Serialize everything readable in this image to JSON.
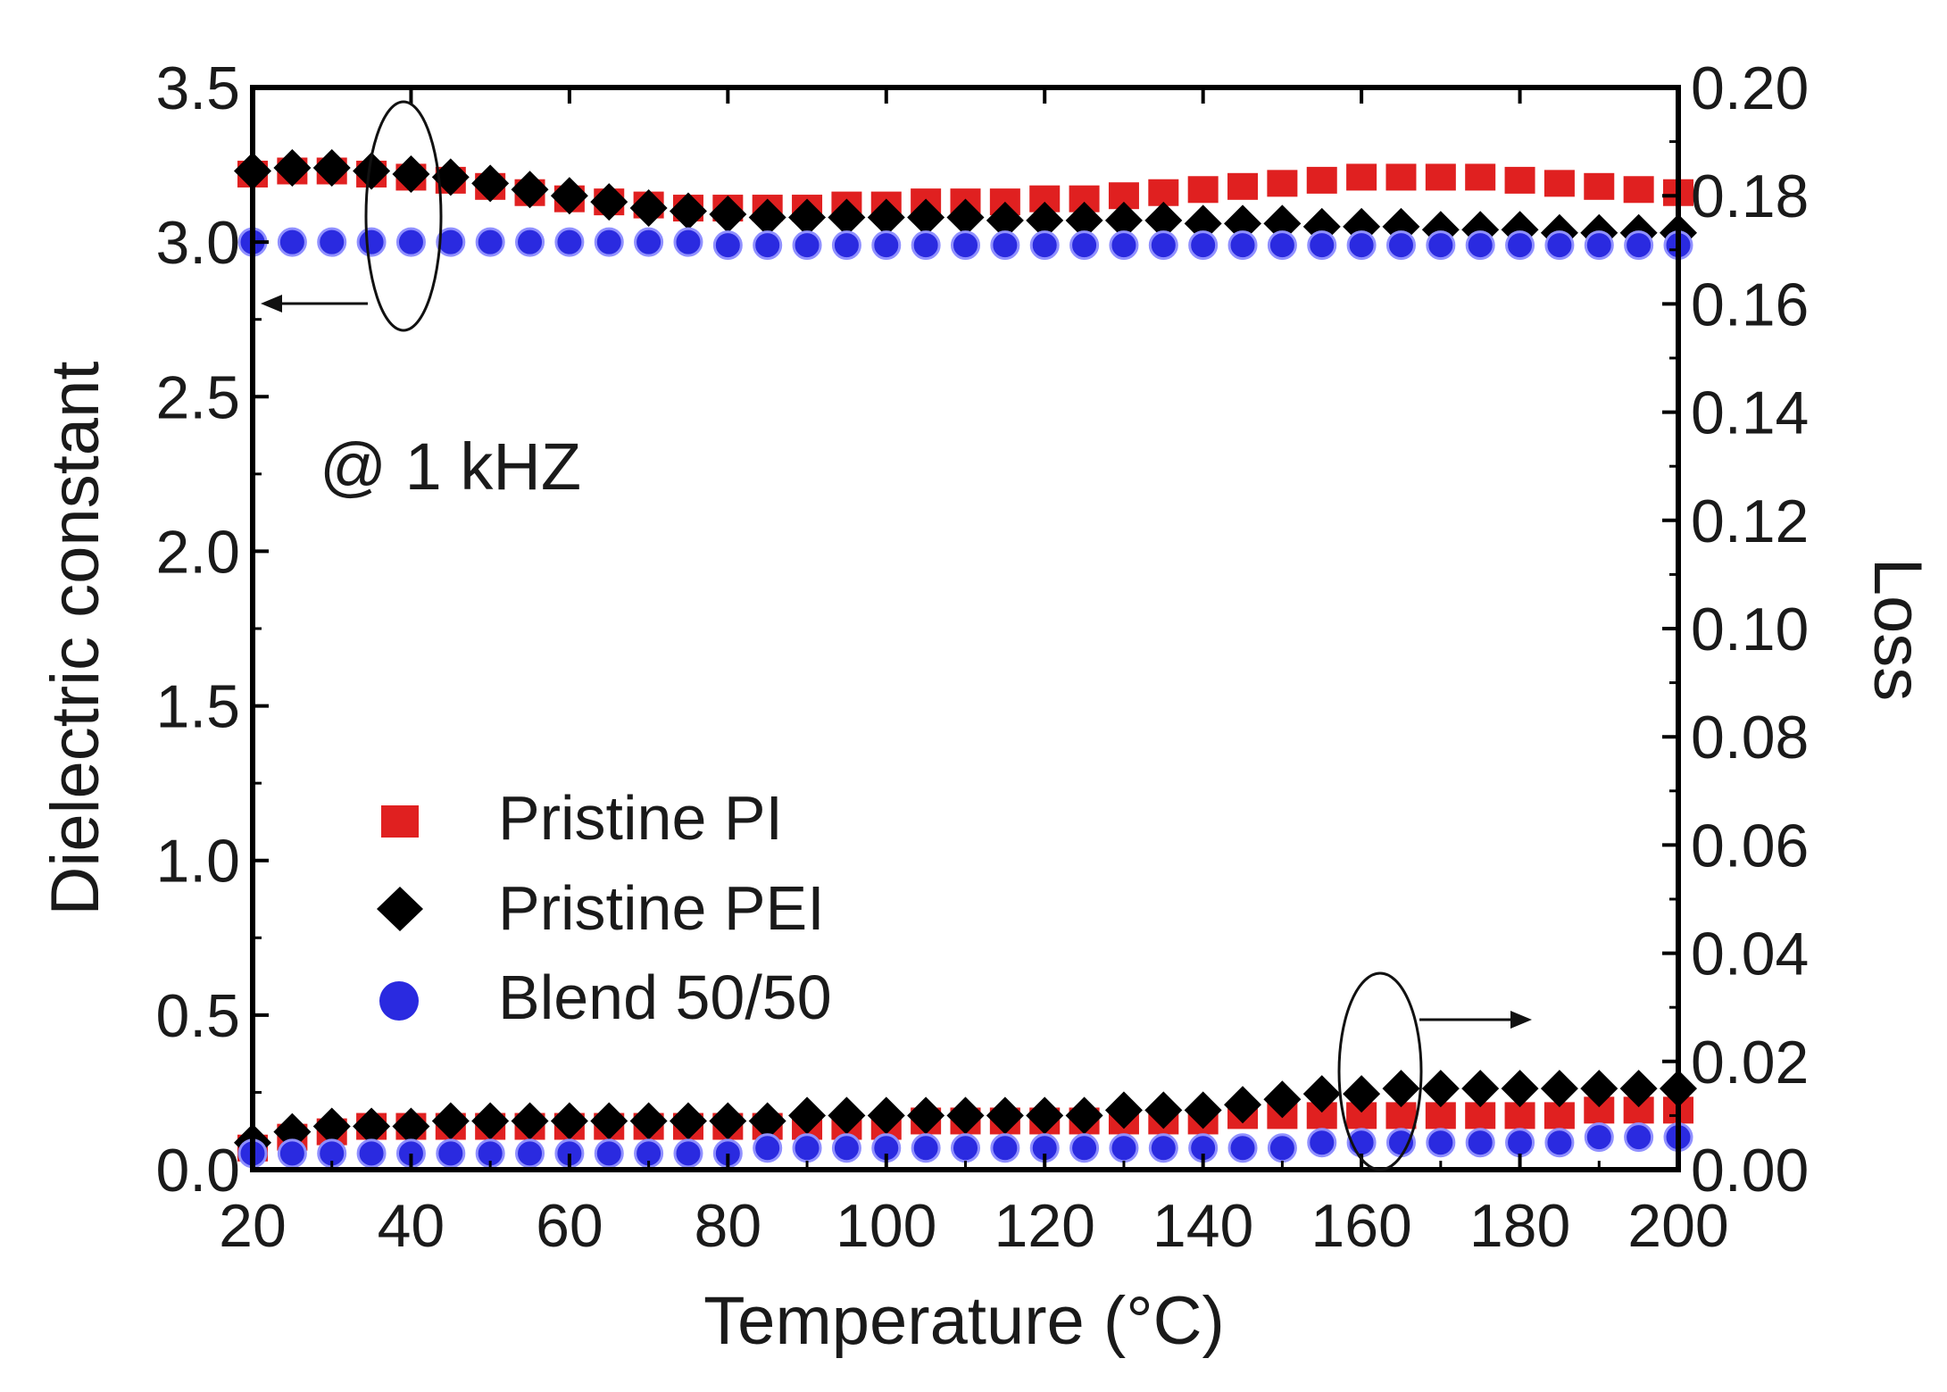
{
  "chart_data": {
    "type": "scatter",
    "title": "",
    "xlabel": "Temperature (°C)",
    "ylabel_left": "Dielectric constant",
    "ylabel_right": "Loss",
    "xlim": [
      20,
      200
    ],
    "ylim_left": [
      0.0,
      3.5
    ],
    "ylim_right": [
      0.0,
      0.2
    ],
    "x_ticks": [
      "20",
      "40",
      "60",
      "80",
      "100",
      "120",
      "140",
      "160",
      "180",
      "200"
    ],
    "y_left_ticks": [
      "0.0",
      "0.5",
      "1.0",
      "1.5",
      "2.0",
      "2.5",
      "3.0",
      "3.5"
    ],
    "y_right_ticks": [
      "0.00",
      "0.02",
      "0.04",
      "0.06",
      "0.08",
      "0.10",
      "0.12",
      "0.14",
      "0.16",
      "0.18",
      "0.20"
    ],
    "annotation": "@ 1 kHZ",
    "legend": [
      "Pristine PI",
      "Pristine PEI",
      "Blend 50/50"
    ],
    "legend_position": "bottom-left",
    "x": [
      20,
      25,
      30,
      35,
      40,
      45,
      50,
      55,
      60,
      65,
      70,
      75,
      80,
      85,
      90,
      95,
      100,
      105,
      110,
      115,
      120,
      125,
      130,
      135,
      140,
      145,
      150,
      155,
      160,
      165,
      170,
      175,
      180,
      185,
      190,
      195,
      200
    ],
    "series": [
      {
        "name": "Pristine PI",
        "marker": "square",
        "color": "#e02020",
        "dielectric_constant": [
          3.22,
          3.23,
          3.23,
          3.22,
          3.21,
          3.2,
          3.18,
          3.16,
          3.14,
          3.13,
          3.12,
          3.11,
          3.11,
          3.11,
          3.11,
          3.12,
          3.12,
          3.13,
          3.13,
          3.13,
          3.14,
          3.14,
          3.15,
          3.16,
          3.17,
          3.18,
          3.19,
          3.2,
          3.21,
          3.21,
          3.21,
          3.21,
          3.2,
          3.19,
          3.18,
          3.17,
          3.16
        ],
        "loss": [
          0.004,
          0.006,
          0.007,
          0.008,
          0.008,
          0.008,
          0.008,
          0.008,
          0.008,
          0.008,
          0.008,
          0.008,
          0.008,
          0.008,
          0.008,
          0.008,
          0.008,
          0.009,
          0.009,
          0.009,
          0.009,
          0.009,
          0.009,
          0.009,
          0.009,
          0.01,
          0.01,
          0.01,
          0.01,
          0.01,
          0.01,
          0.01,
          0.01,
          0.01,
          0.011,
          0.011,
          0.011
        ]
      },
      {
        "name": "Pristine PEI",
        "marker": "diamond",
        "color": "#000000",
        "dielectric_constant": [
          3.23,
          3.24,
          3.24,
          3.23,
          3.22,
          3.21,
          3.19,
          3.17,
          3.15,
          3.13,
          3.11,
          3.1,
          3.09,
          3.08,
          3.08,
          3.08,
          3.08,
          3.08,
          3.08,
          3.07,
          3.07,
          3.07,
          3.07,
          3.07,
          3.06,
          3.06,
          3.06,
          3.05,
          3.05,
          3.05,
          3.04,
          3.04,
          3.04,
          3.03,
          3.03,
          3.03,
          3.03
        ],
        "loss": [
          0.005,
          0.007,
          0.008,
          0.008,
          0.008,
          0.009,
          0.009,
          0.009,
          0.009,
          0.009,
          0.009,
          0.009,
          0.009,
          0.009,
          0.01,
          0.01,
          0.01,
          0.01,
          0.01,
          0.01,
          0.01,
          0.01,
          0.011,
          0.011,
          0.011,
          0.012,
          0.013,
          0.014,
          0.014,
          0.015,
          0.015,
          0.015,
          0.015,
          0.015,
          0.015,
          0.015,
          0.015
        ]
      },
      {
        "name": "Blend 50/50",
        "marker": "circle",
        "color": "#2a2ae0",
        "dielectric_constant": [
          3.0,
          3.0,
          3.0,
          3.0,
          3.0,
          3.0,
          3.0,
          3.0,
          3.0,
          3.0,
          3.0,
          3.0,
          2.99,
          2.99,
          2.99,
          2.99,
          2.99,
          2.99,
          2.99,
          2.99,
          2.99,
          2.99,
          2.99,
          2.99,
          2.99,
          2.99,
          2.99,
          2.99,
          2.99,
          2.99,
          2.99,
          2.99,
          2.99,
          2.99,
          2.99,
          2.99,
          2.99
        ],
        "loss": [
          0.003,
          0.003,
          0.003,
          0.003,
          0.003,
          0.003,
          0.003,
          0.003,
          0.003,
          0.003,
          0.003,
          0.003,
          0.003,
          0.004,
          0.004,
          0.004,
          0.004,
          0.004,
          0.004,
          0.004,
          0.004,
          0.004,
          0.004,
          0.004,
          0.004,
          0.004,
          0.004,
          0.005,
          0.005,
          0.005,
          0.005,
          0.005,
          0.005,
          0.005,
          0.006,
          0.006,
          0.006
        ]
      }
    ]
  }
}
